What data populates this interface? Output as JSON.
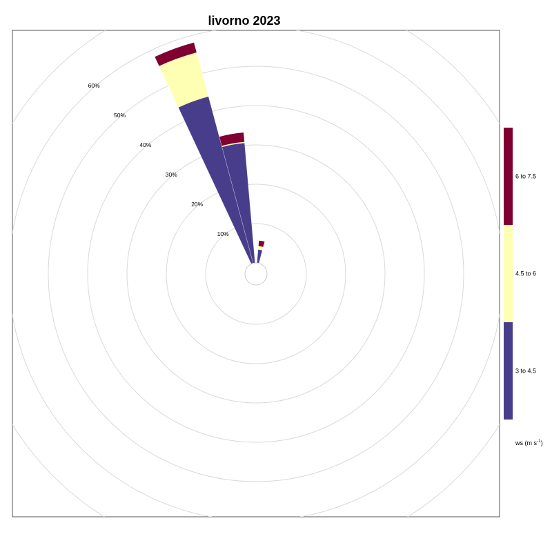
{
  "chart_data": {
    "type": "windrose",
    "title": "livorno 2023",
    "radial_ticks": [
      10,
      20,
      30,
      40,
      50,
      60
    ],
    "radial_tick_labels": [
      "10%",
      "20%",
      "30%",
      "40%",
      "50%",
      "60%"
    ],
    "radial_max": 70,
    "grid": true,
    "legend": {
      "placement": "right",
      "title_main": "ws (m s",
      "title_sup": "-1",
      "title_end": ")",
      "bins": [
        {
          "label": "3 to 4.5",
          "color": "#483D8B"
        },
        {
          "label": "4.5 to 6",
          "color": "#FFFFB3"
        },
        {
          "label": "6 to 7.5",
          "color": "#800032"
        }
      ]
    },
    "sectors": [
      {
        "direction_deg": 0,
        "values": [
          0,
          0,
          0
        ]
      },
      {
        "direction_deg": 10,
        "values": [
          3.4,
          0.9,
          1.4
        ]
      },
      {
        "direction_deg": 20,
        "values": [
          0,
          0,
          0
        ]
      },
      {
        "direction_deg": 340,
        "values": [
          43.9,
          11.6,
          2.6
        ]
      },
      {
        "direction_deg": 350,
        "values": [
          30.6,
          0.3,
          2.4
        ]
      }
    ]
  }
}
